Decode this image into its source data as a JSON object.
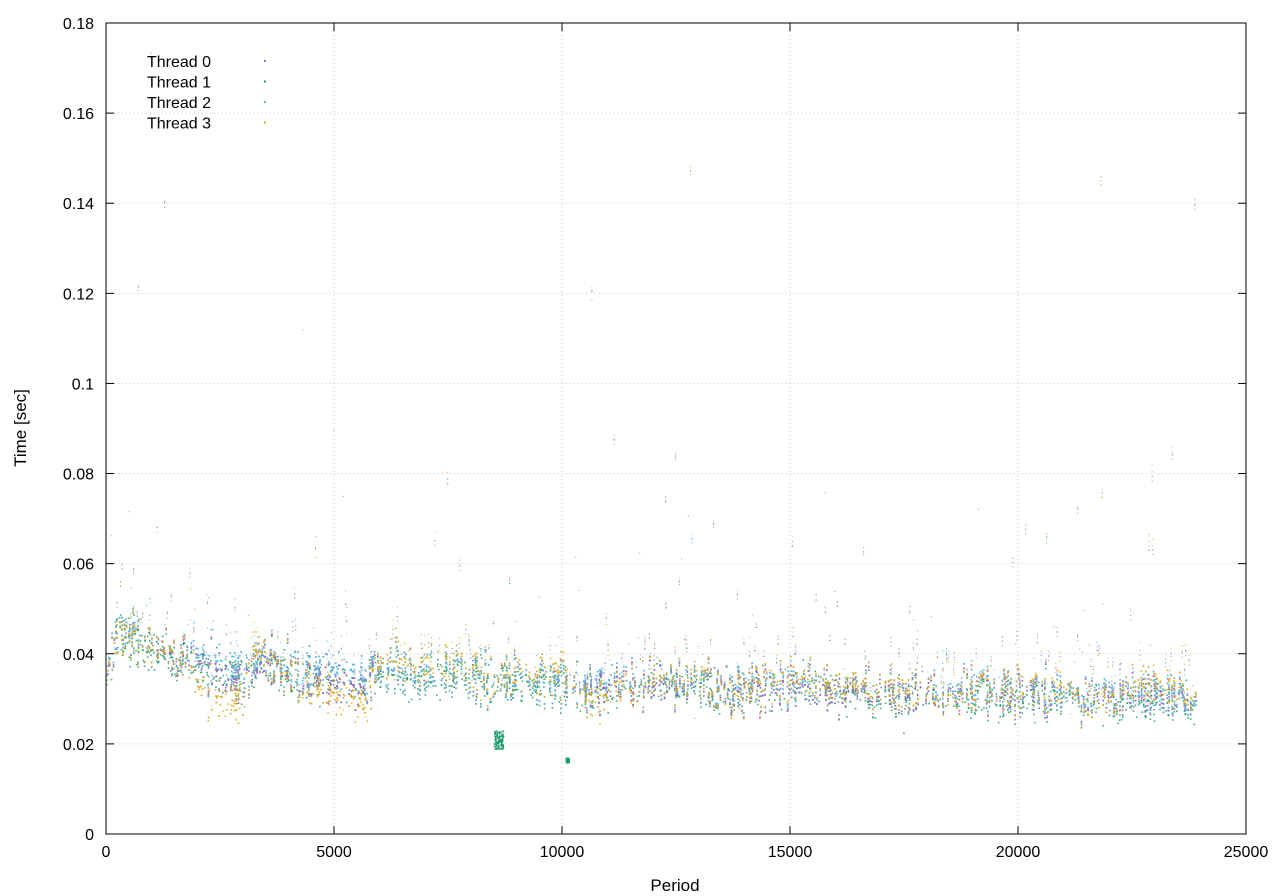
{
  "chart_data": {
    "type": "scatter",
    "title": "",
    "xlabel": "Period",
    "ylabel": "Time [sec]",
    "xlim": [
      0,
      25000
    ],
    "ylim": [
      0,
      0.18
    ],
    "xticks": [
      0,
      5000,
      10000,
      15000,
      20000,
      25000
    ],
    "xtick_labels": [
      "0",
      "5000",
      "10000",
      "15000",
      "20000",
      "25000"
    ],
    "yticks": [
      0,
      0.02,
      0.04,
      0.06,
      0.08,
      0.1,
      0.12,
      0.14,
      0.16,
      0.18
    ],
    "ytick_labels": [
      "0",
      "0.02",
      "0.04",
      "0.06",
      "0.08",
      "0.1",
      "0.12",
      "0.14",
      "0.16",
      "0.18"
    ],
    "grid": true,
    "legend_position": "top-left",
    "series": [
      {
        "name": "Thread 0",
        "color": "#9b64c8",
        "trend": [
          [
            0,
            0.033
          ],
          [
            200,
            0.046
          ],
          [
            1000,
            0.042
          ],
          [
            1800,
            0.039
          ],
          [
            2500,
            0.036
          ],
          [
            3000,
            0.033
          ],
          [
            3500,
            0.039
          ],
          [
            4000,
            0.037
          ],
          [
            4800,
            0.034
          ],
          [
            5500,
            0.033
          ],
          [
            6000,
            0.037
          ],
          [
            7000,
            0.036
          ],
          [
            8000,
            0.036
          ],
          [
            8500,
            0.034
          ],
          [
            9000,
            0.035
          ],
          [
            10000,
            0.034
          ],
          [
            11000,
            0.032
          ],
          [
            12000,
            0.033
          ],
          [
            13000,
            0.034
          ],
          [
            14000,
            0.032
          ],
          [
            15000,
            0.033
          ],
          [
            16000,
            0.032
          ],
          [
            17000,
            0.031
          ],
          [
            18000,
            0.031
          ],
          [
            19000,
            0.032
          ],
          [
            20000,
            0.031
          ],
          [
            21000,
            0.031
          ],
          [
            22000,
            0.031
          ],
          [
            23000,
            0.031
          ],
          [
            23900,
            0.03
          ]
        ]
      },
      {
        "name": "Thread 1",
        "color": "#1f9e6a",
        "trend": [
          [
            0,
            0.034
          ],
          [
            200,
            0.045
          ],
          [
            1000,
            0.041
          ],
          [
            1800,
            0.038
          ],
          [
            2500,
            0.036
          ],
          [
            3000,
            0.034
          ],
          [
            3500,
            0.039
          ],
          [
            4000,
            0.036
          ],
          [
            4800,
            0.034
          ],
          [
            5500,
            0.033
          ],
          [
            6000,
            0.036
          ],
          [
            7000,
            0.035
          ],
          [
            8000,
            0.035
          ],
          [
            8500,
            0.034
          ],
          [
            9000,
            0.034
          ],
          [
            10000,
            0.033
          ],
          [
            11000,
            0.032
          ],
          [
            12000,
            0.033
          ],
          [
            13000,
            0.033
          ],
          [
            14000,
            0.032
          ],
          [
            15000,
            0.033
          ],
          [
            16000,
            0.032
          ],
          [
            17000,
            0.03
          ],
          [
            18000,
            0.031
          ],
          [
            19000,
            0.031
          ],
          [
            20000,
            0.03
          ],
          [
            21000,
            0.03
          ],
          [
            22000,
            0.03
          ],
          [
            23000,
            0.03
          ],
          [
            23900,
            0.029
          ]
        ]
      },
      {
        "name": "Thread 2",
        "color": "#56b4e9",
        "trend": [
          [
            0,
            0.035
          ],
          [
            200,
            0.046
          ],
          [
            1000,
            0.042
          ],
          [
            1800,
            0.04
          ],
          [
            2500,
            0.038
          ],
          [
            3000,
            0.036
          ],
          [
            3500,
            0.04
          ],
          [
            4000,
            0.038
          ],
          [
            4800,
            0.037
          ],
          [
            5500,
            0.036
          ],
          [
            6000,
            0.037
          ],
          [
            7000,
            0.036
          ],
          [
            8000,
            0.036
          ],
          [
            8500,
            0.034
          ],
          [
            9000,
            0.035
          ],
          [
            10000,
            0.034
          ],
          [
            11000,
            0.033
          ],
          [
            12000,
            0.034
          ],
          [
            13000,
            0.034
          ],
          [
            14000,
            0.033
          ],
          [
            15000,
            0.034
          ],
          [
            16000,
            0.033
          ],
          [
            17000,
            0.032
          ],
          [
            18000,
            0.032
          ],
          [
            19000,
            0.033
          ],
          [
            20000,
            0.032
          ],
          [
            21000,
            0.031
          ],
          [
            22000,
            0.032
          ],
          [
            23000,
            0.032
          ],
          [
            23900,
            0.03
          ]
        ]
      },
      {
        "name": "Thread 3",
        "color": "#e0a81e",
        "trend": [
          [
            0,
            0.034
          ],
          [
            200,
            0.045
          ],
          [
            1000,
            0.042
          ],
          [
            1700,
            0.04
          ],
          [
            1900,
            0.033
          ],
          [
            2500,
            0.03
          ],
          [
            3000,
            0.029
          ],
          [
            3200,
            0.041
          ],
          [
            3800,
            0.038
          ],
          [
            4500,
            0.033
          ],
          [
            5000,
            0.031
          ],
          [
            5700,
            0.03
          ],
          [
            6000,
            0.039
          ],
          [
            7000,
            0.038
          ],
          [
            8000,
            0.037
          ],
          [
            8600,
            0.034
          ],
          [
            9000,
            0.036
          ],
          [
            10000,
            0.036
          ],
          [
            10700,
            0.03
          ],
          [
            11500,
            0.032
          ],
          [
            12000,
            0.034
          ],
          [
            13000,
            0.035
          ],
          [
            13800,
            0.031
          ],
          [
            14500,
            0.034
          ],
          [
            15000,
            0.035
          ],
          [
            16000,
            0.033
          ],
          [
            17000,
            0.032
          ],
          [
            18000,
            0.032
          ],
          [
            18500,
            0.03
          ],
          [
            19000,
            0.032
          ],
          [
            20000,
            0.032
          ],
          [
            21000,
            0.032
          ],
          [
            21500,
            0.03
          ],
          [
            22000,
            0.03
          ],
          [
            22700,
            0.034
          ],
          [
            23900,
            0.031
          ]
        ]
      }
    ],
    "clusters": [
      {
        "series": "Thread 1",
        "x": [
          8500,
          8700
        ],
        "y": [
          0.019,
          0.023
        ]
      },
      {
        "series": "Thread 1",
        "x": [
          10080,
          10140
        ],
        "y": [
          0.016,
          0.017
        ]
      }
    ]
  }
}
